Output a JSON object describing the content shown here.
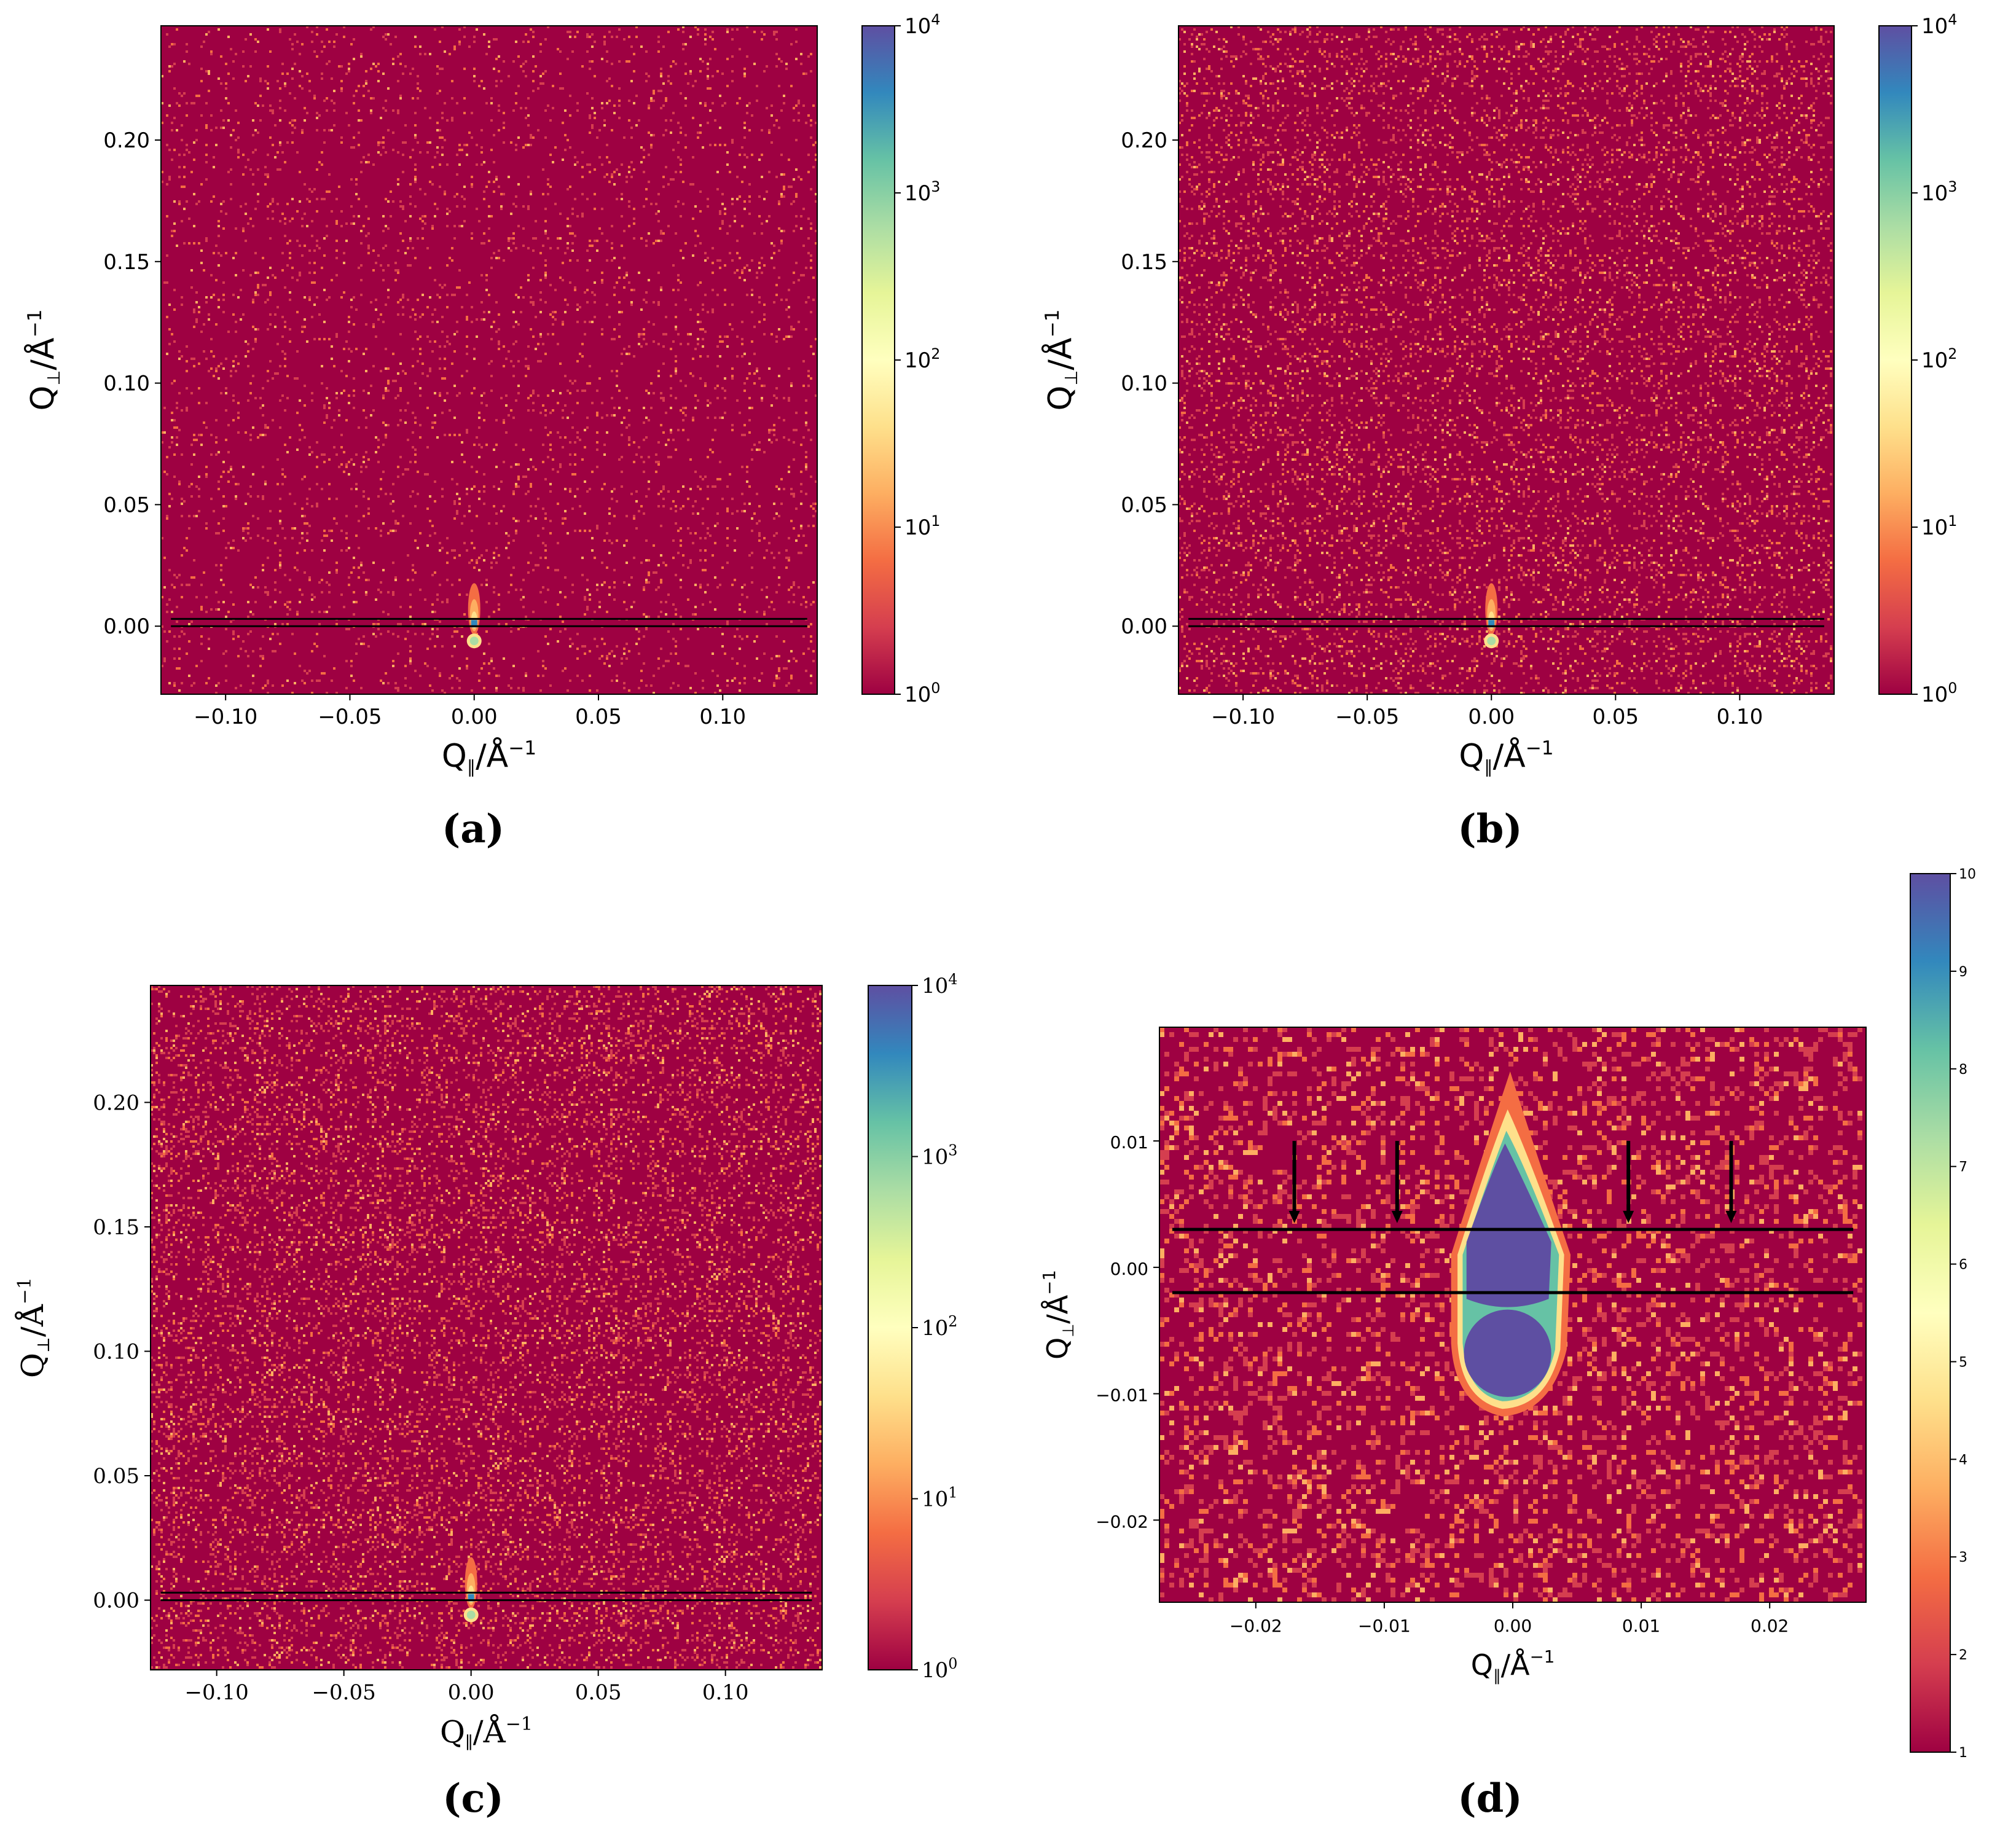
{
  "colors": {
    "background": "#9e0142",
    "speckle": [
      "#d53e4f",
      "#f46d43",
      "#fdae61"
    ],
    "cmap": [
      "#9e0142",
      "#d53e4f",
      "#f46d43",
      "#fdae61",
      "#fee08b",
      "#ffffbf",
      "#e6f598",
      "#abdda4",
      "#66c2a5",
      "#3288bd",
      "#5e4fa2"
    ],
    "line": "#000000"
  },
  "chart_data": [
    {
      "id": "a",
      "type": "heatmap",
      "label": "(a)",
      "xlabel_main": "Q",
      "xlabel_sub": "∥",
      "xlabel_rest": "/Å",
      "xlabel_sup": "−1",
      "ylabel_main": "Q",
      "ylabel_sub": "⊥",
      "ylabel_rest": "/Å",
      "ylabel_sup": "−1",
      "xlim": [
        -0.126,
        0.138
      ],
      "ylim": [
        -0.028,
        0.247
      ],
      "xticks": [
        -0.1,
        -0.05,
        0.0,
        0.05,
        0.1
      ],
      "xtick_labels": [
        "−0.10",
        "−0.05",
        "0.00",
        "0.05",
        "0.10"
      ],
      "yticks": [
        0.0,
        0.05,
        0.1,
        0.15,
        0.2
      ],
      "ytick_labels": [
        "0.00",
        "0.05",
        "0.10",
        "0.15",
        "0.20"
      ],
      "hlines": [
        0.003,
        0.0
      ],
      "hline_xrange": [
        -0.122,
        0.134
      ],
      "speckle_density": 0.05,
      "colorbar": {
        "scale": "log",
        "ticks": [
          {
            "base": "10",
            "exp": "4",
            "value": 4
          },
          {
            "base": "10",
            "exp": "3",
            "value": 3
          },
          {
            "base": "10",
            "exp": "2",
            "value": 2
          },
          {
            "base": "10",
            "exp": "1",
            "value": 1
          },
          {
            "base": "10",
            "exp": "0",
            "value": 0
          }
        ],
        "range": [
          0,
          4
        ]
      }
    },
    {
      "id": "b",
      "type": "heatmap",
      "label": "(b)",
      "xlabel_main": "Q",
      "xlabel_sub": "∥",
      "xlabel_rest": "/Å",
      "xlabel_sup": "−1",
      "ylabel_main": "Q",
      "ylabel_sub": "⊥",
      "ylabel_rest": "/Å",
      "ylabel_sup": "−1",
      "xlim": [
        -0.126,
        0.138
      ],
      "ylim": [
        -0.028,
        0.247
      ],
      "xticks": [
        -0.1,
        -0.05,
        0.0,
        0.05,
        0.1
      ],
      "xtick_labels": [
        "−0.10",
        "−0.05",
        "0.00",
        "0.05",
        "0.10"
      ],
      "yticks": [
        0.0,
        0.05,
        0.1,
        0.15,
        0.2
      ],
      "ytick_labels": [
        "0.00",
        "0.05",
        "0.10",
        "0.15",
        "0.20"
      ],
      "hlines": [
        0.003,
        0.0
      ],
      "hline_xrange": [
        -0.122,
        0.134
      ],
      "speckle_density": 0.13,
      "colorbar": {
        "scale": "log",
        "ticks": [
          {
            "base": "10",
            "exp": "4",
            "value": 4
          },
          {
            "base": "10",
            "exp": "3",
            "value": 3
          },
          {
            "base": "10",
            "exp": "2",
            "value": 2
          },
          {
            "base": "10",
            "exp": "1",
            "value": 1
          },
          {
            "base": "10",
            "exp": "0",
            "value": 0
          }
        ],
        "range": [
          0,
          4
        ]
      }
    },
    {
      "id": "c",
      "type": "heatmap",
      "label": "(c)",
      "xlabel_main": "Q",
      "xlabel_sub": "∥",
      "xlabel_rest": "/Å",
      "xlabel_sup": "−1",
      "ylabel_main": "Q",
      "ylabel_sub": "⊥",
      "ylabel_rest": "/Å",
      "ylabel_sup": "−1",
      "xlim": [
        -0.126,
        0.138
      ],
      "ylim": [
        -0.028,
        0.247
      ],
      "xticks": [
        -0.1,
        -0.05,
        0.0,
        0.05,
        0.1
      ],
      "xtick_labels": [
        "−0.10",
        "−0.05",
        "0.00",
        "0.05",
        "0.10"
      ],
      "yticks": [
        0.0,
        0.05,
        0.1,
        0.15,
        0.2
      ],
      "ytick_labels": [
        "0.00",
        "0.05",
        "0.10",
        "0.15",
        "0.20"
      ],
      "hlines": [
        0.003,
        0.0
      ],
      "hline_xrange": [
        -0.122,
        0.134
      ],
      "speckle_density": 0.16,
      "colorbar": {
        "scale": "log",
        "ticks": [
          {
            "base": "10",
            "exp": "4",
            "value": 4
          },
          {
            "base": "10",
            "exp": "3",
            "value": 3
          },
          {
            "base": "10",
            "exp": "2",
            "value": 2
          },
          {
            "base": "10",
            "exp": "1",
            "value": 1
          },
          {
            "base": "10",
            "exp": "0",
            "value": 0
          }
        ],
        "range": [
          0,
          4
        ]
      }
    },
    {
      "id": "d",
      "type": "heatmap",
      "label": "(d)",
      "xlabel_main": "Q",
      "xlabel_sub": "∥",
      "xlabel_rest": "/Å",
      "xlabel_sup": "−1",
      "ylabel_main": "Q",
      "ylabel_sub": "⊥",
      "ylabel_rest": "/Å",
      "ylabel_sup": "−1",
      "xlim": [
        -0.0275,
        0.0275
      ],
      "ylim": [
        -0.0265,
        0.019
      ],
      "xticks": [
        -0.02,
        -0.01,
        0.0,
        0.01,
        0.02
      ],
      "xtick_labels": [
        "−0.02",
        "−0.01",
        "0.00",
        "0.01",
        "0.02"
      ],
      "yticks": [
        -0.02,
        -0.01,
        0.0,
        0.01
      ],
      "ytick_labels": [
        "−0.02",
        "−0.01",
        "0.00",
        "0.01"
      ],
      "hlines": [
        0.003,
        -0.002
      ],
      "hline_xrange": [
        -0.0265,
        0.0265
      ],
      "arrows_x": [
        -0.017,
        -0.009,
        0.009,
        0.017
      ],
      "arrow_y_top": 0.01,
      "arrow_y_bottom": 0.0035,
      "speckle_density": 0.22,
      "colorbar": {
        "scale": "linear",
        "ticks": [
          {
            "label": "10",
            "value": 10
          },
          {
            "label": "9",
            "value": 9
          },
          {
            "label": "8",
            "value": 8
          },
          {
            "label": "7",
            "value": 7
          },
          {
            "label": "6",
            "value": 6
          },
          {
            "label": "5",
            "value": 5
          },
          {
            "label": "4",
            "value": 4
          },
          {
            "label": "3",
            "value": 3
          },
          {
            "label": "2",
            "value": 2
          },
          {
            "label": "1",
            "value": 1
          }
        ],
        "range": [
          1,
          10
        ]
      }
    }
  ]
}
